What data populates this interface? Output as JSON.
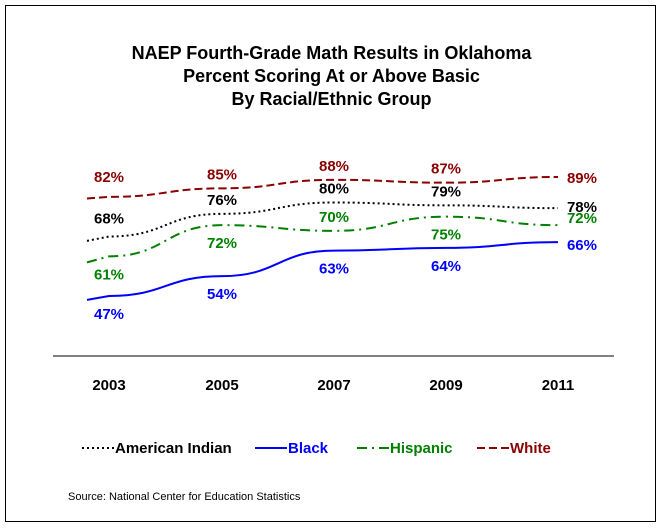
{
  "chart_data": {
    "type": "line",
    "title_lines": [
      "NAEP Fourth-Grade Math Results in Oklahoma",
      "Percent Scoring At or Above Basic",
      "By Racial/Ethnic Group"
    ],
    "categories": [
      "2003",
      "2005",
      "2007",
      "2009",
      "2011"
    ],
    "ylim": [
      40,
      95
    ],
    "grid": false,
    "legend_position": "bottom",
    "series": [
      {
        "name": "American Indian",
        "values": [
          68,
          76,
          80,
          79,
          78
        ],
        "labels": [
          "68%",
          "76%",
          "80%",
          "79%",
          "78%"
        ],
        "color": "#000000",
        "dash": "dotted"
      },
      {
        "name": "Black",
        "values": [
          47,
          54,
          63,
          64,
          66
        ],
        "labels": [
          "47%",
          "54%",
          "63%",
          "64%",
          "66%"
        ],
        "color": "#0000ff",
        "dash": "solid"
      },
      {
        "name": "Hispanic",
        "values": [
          61,
          72,
          70,
          75,
          72
        ],
        "labels": [
          "61%",
          "72%",
          "70%",
          "75%",
          "72%"
        ],
        "color": "#008000",
        "dash": "dashdot"
      },
      {
        "name": "White",
        "values": [
          82,
          85,
          88,
          87,
          89
        ],
        "labels": [
          "82%",
          "85%",
          "88%",
          "87%",
          "89%"
        ],
        "color": "#8b0000",
        "dash": "dashed"
      }
    ]
  },
  "legend": [
    {
      "label": "American Indian",
      "color": "#000000",
      "dash": "dotted"
    },
    {
      "label": "Black",
      "color": "#0000ff",
      "dash": "solid"
    },
    {
      "label": "Hispanic",
      "color": "#008000",
      "dash": "dashdot"
    },
    {
      "label": "White",
      "color": "#8b0000",
      "dash": "dashed"
    }
  ],
  "source": "Source: National Center for Education Statistics"
}
